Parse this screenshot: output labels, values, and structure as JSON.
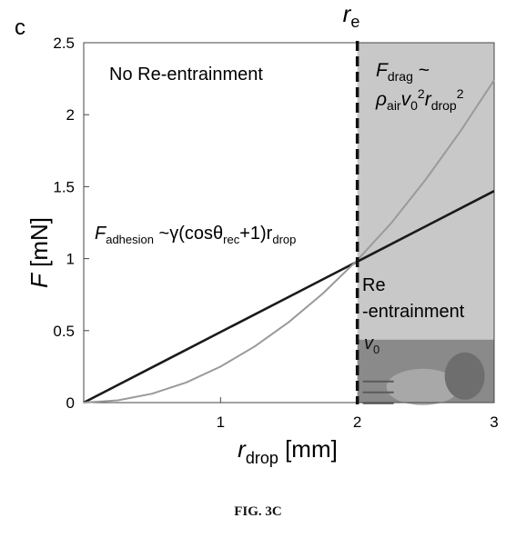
{
  "panel_label": "c",
  "caption": "FIG. 3C",
  "chart_data": {
    "type": "line",
    "title": "",
    "xlabel": {
      "main": "r",
      "sub": "drop",
      "unit": " [mm]"
    },
    "ylabel": {
      "main": "F",
      "unit": " [mN]"
    },
    "xlim": [
      0,
      3
    ],
    "ylim": [
      0,
      2.5
    ],
    "xticks": [
      {
        "value": 1,
        "label": "1"
      },
      {
        "value": 2,
        "label": "2"
      },
      {
        "value": 3,
        "label": "3"
      }
    ],
    "yticks": [
      {
        "value": 0,
        "label": "0"
      },
      {
        "value": 0.5,
        "label": "0.5"
      },
      {
        "value": 1,
        "label": "1"
      },
      {
        "value": 1.5,
        "label": "1.5"
      },
      {
        "value": 2,
        "label": "2"
      },
      {
        "value": 2.5,
        "label": "2.5"
      }
    ],
    "grid": false,
    "critical_radius": {
      "x": 2,
      "label_main": "r",
      "label_sub": "e"
    },
    "region_left_label": "No Re-entrainment",
    "region_right_label_line1": "Re",
    "region_right_label_line2": "-entrainment",
    "inset_label": {
      "main": "v",
      "sub": "0"
    },
    "series": [
      {
        "name": "F_adhesion",
        "color": "#1a1a1a",
        "x": [
          0,
          0.5,
          1,
          1.5,
          2,
          2.5,
          3
        ],
        "y": [
          0,
          0.245,
          0.49,
          0.735,
          0.98,
          1.225,
          1.47
        ]
      },
      {
        "name": "F_drag",
        "color": "#9a9a9a",
        "x": [
          0,
          0.25,
          0.5,
          0.75,
          1,
          1.25,
          1.5,
          1.75,
          2,
          2.25,
          2.5,
          2.75,
          3
        ],
        "y": [
          0,
          0.016,
          0.062,
          0.14,
          0.25,
          0.39,
          0.56,
          0.76,
          0.99,
          1.25,
          1.55,
          1.88,
          2.24
        ]
      }
    ],
    "annotations": {
      "adhesion": {
        "F": "F",
        "sub": "adhesion",
        "eq": " ~γ(cosθ",
        "rec": "rec",
        "mid": "+1)r",
        "drop": "drop"
      },
      "drag": {
        "F": "F",
        "sub": "drag",
        "tilde": " ~",
        "rho": "ρ",
        "air": "air",
        "v": "v",
        "zero": "0",
        "sq": "2",
        "r": "r",
        "drop": "drop",
        "sq2": "2"
      }
    }
  }
}
